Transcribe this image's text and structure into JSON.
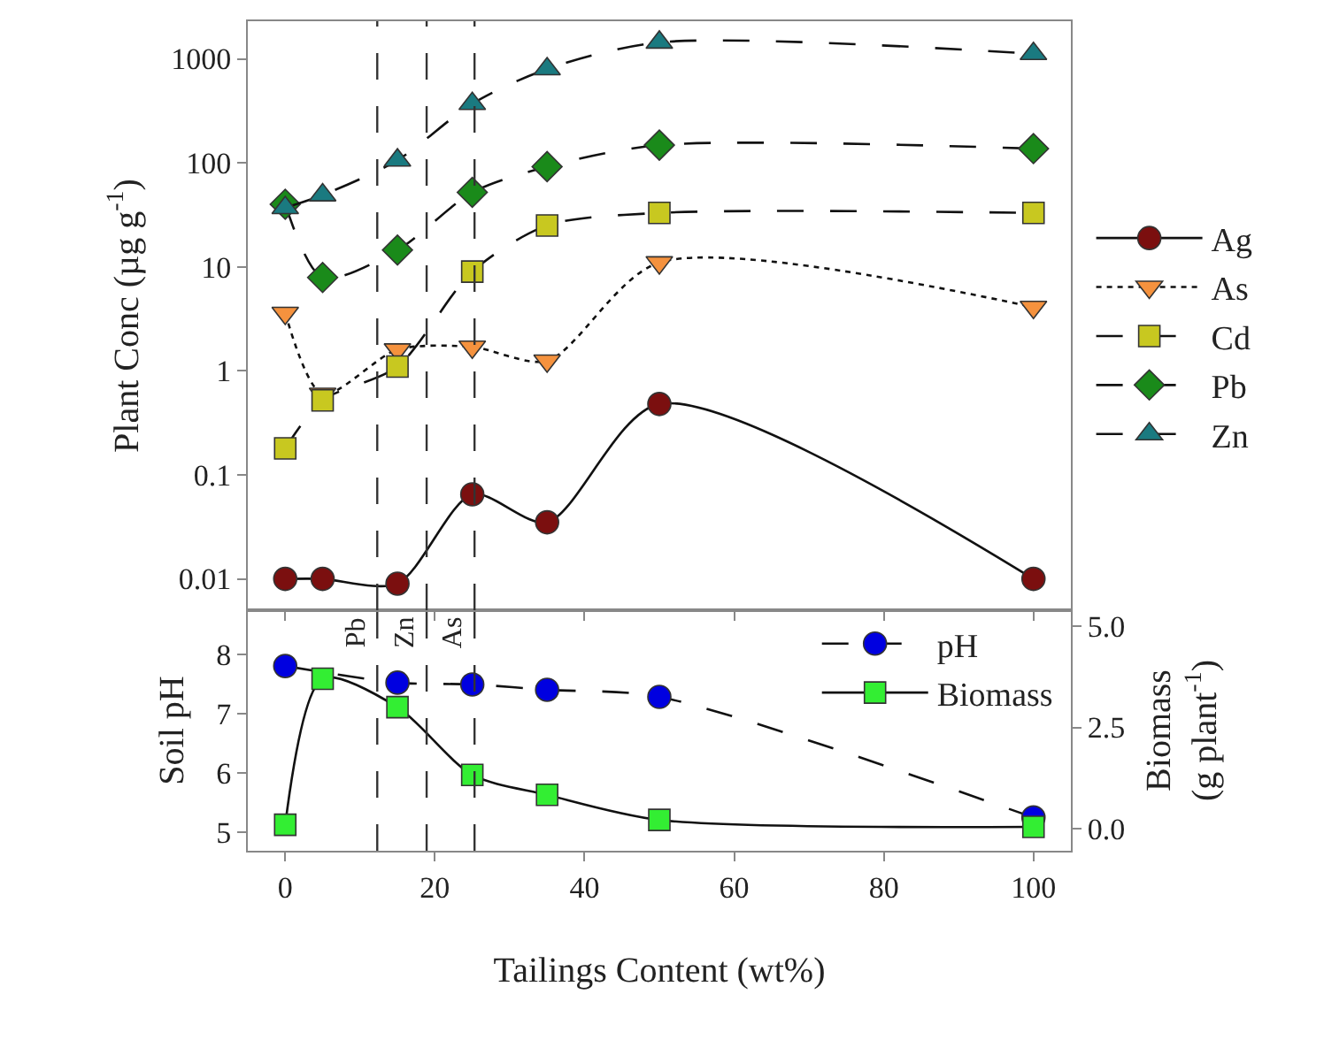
{
  "chart_data": [
    {
      "type": "line",
      "ylabel": "Plant Conc (µg g$^{-1}$)",
      "x": [
        0,
        5,
        15,
        25,
        35,
        50,
        100
      ],
      "xlim": [
        -5,
        105
      ],
      "xticks": [
        0,
        20,
        40,
        60,
        80,
        100
      ],
      "ylim": [
        0.005,
        2300
      ],
      "log": true,
      "yticks": [
        0.01,
        0.1,
        1,
        10,
        100,
        1000
      ],
      "tick_labels": "y",
      "legend": "right",
      "grid": false,
      "series": [
        {
          "name": "Ag",
          "color": "#7b0f0f",
          "marker": "circle",
          "line_style": "solid",
          "values": [
            0.01,
            0.01,
            0.009,
            0.065,
            0.035,
            0.48,
            0.01
          ]
        },
        {
          "name": "As",
          "color": "#f5923e",
          "marker": "triangle-down",
          "line_style": "dotted",
          "values": [
            3.6,
            0.6,
            1.6,
            1.7,
            1.25,
            11,
            4.1
          ]
        },
        {
          "name": "Cd",
          "color": "#c8c820",
          "marker": "square",
          "line_style": "dashed",
          "values": [
            0.18,
            0.52,
            1.1,
            9,
            25,
            33,
            33
          ]
        },
        {
          "name": "Pb",
          "color": "#1a8a1a",
          "marker": "diamond",
          "line_style": "dashed",
          "values": [
            40,
            7.9,
            14.5,
            52,
            92,
            148,
            137
          ]
        },
        {
          "name": "Zn",
          "color": "#1a7a80",
          "marker": "triangle",
          "line_style": "dashed",
          "values": [
            37,
            49,
            106,
            370,
            800,
            1440,
            1120
          ]
        }
      ],
      "ref_lines": [
        {
          "axis": "x",
          "value": 12.3
        },
        {
          "axis": "x",
          "value": 18.9
        },
        {
          "axis": "x",
          "value": 25.3
        }
      ]
    },
    {
      "type": "line",
      "ylabel": "Soil pH",
      "y2label": "Biomass\n(g plant$^{-1}$)",
      "xlabel": "Tailings Content (wt%)",
      "x": [
        0,
        5,
        15,
        25,
        35,
        50,
        100
      ],
      "xlim": [
        -5,
        105
      ],
      "xticks": [
        0,
        20,
        40,
        60,
        80,
        100
      ],
      "ylim": [
        4.69,
        8.74
      ],
      "yticks": [
        5,
        6,
        7,
        8
      ],
      "y2lim": [
        -0.54,
        5.39
      ],
      "y2ticks": [
        {
          "value": 0,
          "label": "0.0"
        },
        {
          "value": 2.5,
          "label": "2.5"
        },
        {
          "value": 5,
          "label": "5.0"
        }
      ],
      "legend": "top right",
      "grid": false,
      "series": [
        {
          "name": "pH",
          "color": "#0000e0",
          "marker": "circle",
          "line_style": "dashed",
          "values": [
            7.8,
            null,
            7.52,
            7.49,
            7.4,
            7.28,
            5.25
          ]
        },
        {
          "name": "Biomass",
          "color": "#33ee33",
          "marker": "square",
          "line_style": "solid",
          "axis": "y2",
          "values": [
            0.1,
            3.7,
            3.0,
            1.33,
            0.84,
            0.22,
            0.05
          ]
        }
      ],
      "ref_lines": [
        {
          "axis": "x",
          "value": 12.3,
          "label": "Pb"
        },
        {
          "axis": "x",
          "value": 18.9,
          "label": "Zn"
        },
        {
          "axis": "x",
          "value": 25.3,
          "label": "As"
        }
      ]
    }
  ]
}
